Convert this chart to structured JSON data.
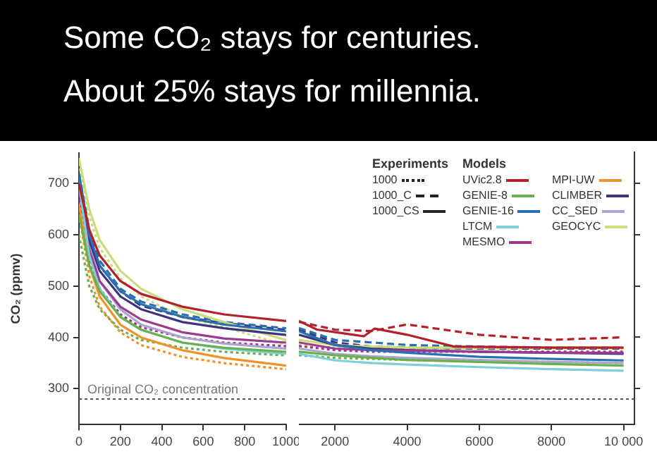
{
  "chart_data": [
    {
      "type": "line",
      "title": "Some CO₂ stays for centuries.",
      "subtitle": "About 25% stays for millennia.",
      "ylabel": "CO₂ (ppmv)",
      "marker": "none",
      "x": [
        0,
        50,
        100,
        200,
        300,
        500,
        700,
        1000
      ],
      "xlim": [
        0,
        1000
      ],
      "xticks": [
        0,
        200,
        400,
        600,
        800,
        1000
      ],
      "ylim": [
        230,
        760
      ],
      "yticks": [
        300,
        400,
        500,
        600,
        700
      ],
      "ref_lines": [
        {
          "axis": "y",
          "value": 280,
          "label": "Original CO₂ concentration",
          "line_style": "dotted",
          "color": "#555555"
        }
      ],
      "series": [
        {
          "color": "#b3202a",
          "line_style": "solid",
          "values": [
            700,
            610,
            560,
            510,
            485,
            460,
            445,
            432
          ]
        },
        {
          "color": "#6ab04c",
          "line_style": "solid",
          "values": [
            640,
            540,
            490,
            440,
            415,
            390,
            380,
            372
          ]
        },
        {
          "color": "#2a6fb0",
          "line_style": "solid",
          "values": [
            720,
            600,
            540,
            490,
            465,
            440,
            425,
            412
          ]
        },
        {
          "color": "#7fcfd8",
          "line_style": "solid",
          "values": [
            700,
            560,
            495,
            440,
            415,
            390,
            378,
            368
          ]
        },
        {
          "color": "#9b3a8e",
          "line_style": "solid",
          "values": [
            690,
            570,
            510,
            460,
            435,
            410,
            398,
            390
          ]
        },
        {
          "color": "#f0922b",
          "line_style": "solid",
          "values": [
            660,
            540,
            480,
            425,
            400,
            375,
            360,
            345
          ]
        },
        {
          "color": "#3b3580",
          "line_style": "solid",
          "values": [
            700,
            590,
            530,
            480,
            455,
            430,
            418,
            405
          ]
        },
        {
          "color": "#aaa6cc",
          "line_style": "solid",
          "values": [
            720,
            580,
            510,
            455,
            425,
            400,
            388,
            378
          ]
        },
        {
          "color": "#cddc7a",
          "line_style": "solid",
          "values": [
            750,
            650,
            590,
            530,
            495,
            455,
            430,
            395
          ]
        },
        {
          "color": "#2a6fb0",
          "line_style": "dashed",
          "values": [
            720,
            610,
            550,
            495,
            470,
            445,
            430,
            418
          ]
        },
        {
          "color": "#3b3580",
          "line_style": "dashed",
          "values": [
            700,
            595,
            540,
            490,
            462,
            440,
            428,
            415
          ]
        },
        {
          "color": "#9b3a8e",
          "line_style": "dotted",
          "values": [
            680,
            555,
            495,
            445,
            420,
            400,
            390,
            383
          ]
        },
        {
          "color": "#cddc7a",
          "line_style": "dotted",
          "values": [
            740,
            635,
            575,
            515,
            480,
            440,
            420,
            385
          ]
        },
        {
          "color": "#6ab04c",
          "line_style": "dotted",
          "values": [
            600,
            500,
            455,
            415,
            395,
            380,
            372,
            365
          ]
        },
        {
          "color": "#f0922b",
          "line_style": "dotted",
          "values": [
            640,
            520,
            460,
            410,
            385,
            362,
            350,
            338
          ]
        }
      ]
    },
    {
      "type": "line",
      "marker": "none",
      "tick_labels": "x",
      "legend": "top right",
      "legend_title": "Models",
      "annotations": [
        "Experiments",
        "1000",
        "1000_C",
        "1000_CS"
      ],
      "x": [
        1000,
        2000,
        3000,
        4000,
        6000,
        8000,
        10000
      ],
      "xlim": [
        1000,
        10300
      ],
      "xticks": [
        2000,
        4000,
        6000,
        8000,
        {
          "value": 10000,
          "label": "10 000"
        }
      ],
      "ylim": [
        230,
        760
      ],
      "yticks": [
        300,
        400,
        500,
        600,
        700
      ],
      "ref_lines": [
        {
          "axis": "y",
          "value": 280,
          "line_style": "dotted",
          "color": "#555555"
        }
      ],
      "series": [
        {
          "name": "UVic2.8",
          "color": "#b3202a",
          "line_style": "solid",
          "x": [
            1000,
            1500,
            2000,
            2800,
            3100,
            4000,
            5300,
            8000,
            10000
          ],
          "values": [
            432,
            415,
            410,
            402,
            417,
            405,
            382,
            380,
            380
          ]
        },
        {
          "name": "GENIE-8",
          "color": "#6ab04c",
          "line_style": "solid",
          "values": [
            372,
            365,
            360,
            356,
            352,
            348,
            345
          ]
        },
        {
          "name": "GENIE-16",
          "color": "#2a6fb0",
          "line_style": "solid",
          "values": [
            412,
            385,
            375,
            370,
            362,
            358,
            355
          ]
        },
        {
          "name": "LTCM",
          "color": "#7fcfd8",
          "line_style": "solid",
          "values": [
            368,
            355,
            350,
            347,
            342,
            338,
            335
          ]
        },
        {
          "name": "MESMO",
          "color": "#9b3a8e",
          "line_style": "solid",
          "values": [
            390,
            378,
            375,
            374,
            372,
            370,
            370
          ]
        },
        {
          "name": "MPI-UW",
          "color": "#f0922b",
          "line_style": "solid",
          "values": [
            null,
            null,
            null,
            null,
            null,
            null,
            null
          ]
        },
        {
          "name": "CLIMBER",
          "color": "#3b3580",
          "line_style": "solid",
          "values": [
            405,
            385,
            378,
            375,
            372,
            370,
            368
          ]
        },
        {
          "name": "CC_SED",
          "color": "#aaa6cc",
          "line_style": "solid",
          "values": [
            378,
            368,
            363,
            360,
            356,
            352,
            350
          ]
        },
        {
          "name": "GEOCYC",
          "color": "#cddc7a",
          "line_style": "solid",
          "values": [
            395,
            385,
            382,
            380,
            380,
            380,
            380
          ]
        },
        {
          "color": "#b3202a",
          "line_style": "dashed",
          "values": [
            430,
            415,
            412,
            425,
            405,
            395,
            400
          ]
        },
        {
          "color": "#2a6fb0",
          "line_style": "dashed",
          "values": [
            418,
            395,
            390,
            385,
            382,
            380,
            380
          ]
        },
        {
          "color": "#3b3580",
          "line_style": "dashed",
          "values": [
            415,
            390,
            382,
            380,
            378,
            378,
            378
          ]
        },
        {
          "color": "#9b3a8e",
          "line_style": "dotted",
          "values": [
            383,
            375,
            372,
            372,
            372,
            372,
            372
          ]
        },
        {
          "color": "#cddc7a",
          "line_style": "dotted",
          "values": [
            385,
            380,
            378,
            378,
            378,
            378,
            378
          ]
        },
        {
          "color": "#6ab04c",
          "line_style": "dotted",
          "values": [
            365,
            360,
            358,
            356,
            354,
            352,
            350
          ]
        }
      ]
    }
  ]
}
